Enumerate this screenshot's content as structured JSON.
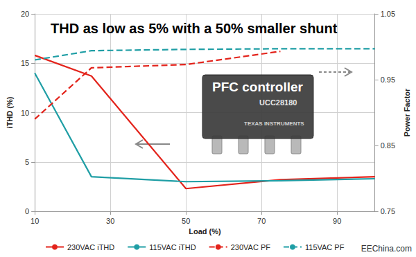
{
  "chart_data": {
    "type": "line",
    "title": "THD as low as 5% with a 50% smaller shunt",
    "x_label": "Load (%)",
    "y_label": "iTHD (%)",
    "y2_label": "Power Factor",
    "x": [
      10,
      25,
      50,
      75,
      100
    ],
    "series": [
      {
        "name": "230VAC iTHD",
        "color": "#e3231b",
        "line_style": "solid",
        "values": [
          15.8,
          13.7,
          2.3,
          3.2,
          3.5
        ]
      },
      {
        "name": "115VAC iTHD",
        "color": "#1f9ea5",
        "line_style": "solid",
        "values": [
          14.0,
          3.5,
          3.0,
          3.1,
          3.3
        ]
      },
      {
        "name": "230VAC PF",
        "color": "#e3231b",
        "line_style": "dashed",
        "axis": "y2",
        "values": [
          0.89,
          0.968,
          0.973,
          0.993,
          null
        ]
      },
      {
        "name": "115VAC PF",
        "color": "#1f9ea5",
        "line_style": "dashed",
        "axis": "y2",
        "values": [
          0.98,
          0.994,
          0.996,
          0.997,
          0.997
        ]
      }
    ],
    "xlim": [
      10,
      100
    ],
    "xticks": [
      10,
      30,
      50,
      70,
      90
    ],
    "ylim": [
      0,
      20
    ],
    "yticks": [
      0,
      5,
      10,
      15,
      20
    ],
    "y2lim": [
      0.75,
      1.05
    ],
    "y2ticks": [
      0.75,
      0.85,
      0.95,
      1.05
    ],
    "grid": true,
    "legend": "bottom",
    "annotations": [
      "PFC controller",
      "UCC28180",
      "TEXAS INSTRUMENTS",
      "EEChina.com"
    ]
  }
}
